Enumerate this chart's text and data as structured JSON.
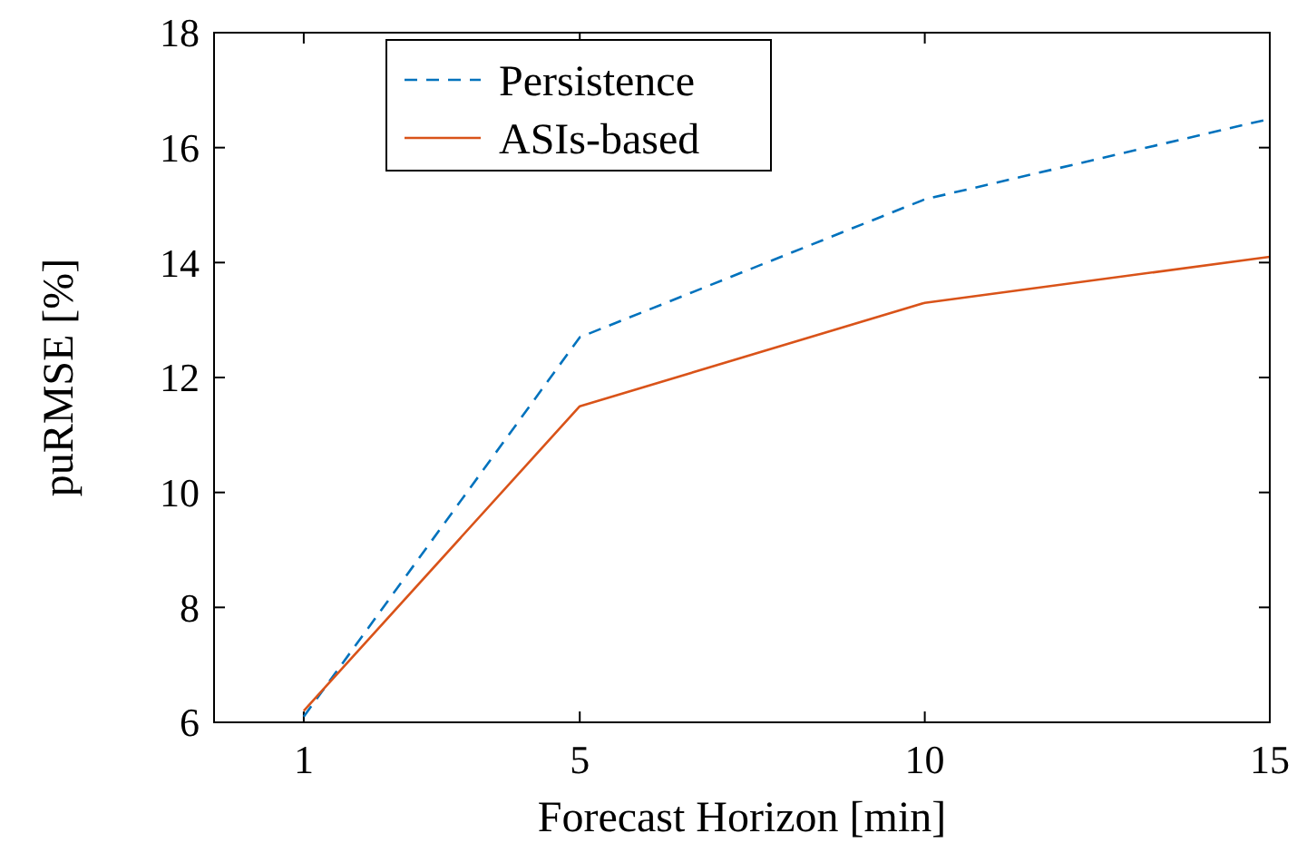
{
  "chart_data": {
    "type": "line",
    "xlabel": "Forecast Horizon [min]",
    "ylabel": "puRMSE [%]",
    "x": [
      1,
      5,
      10,
      15
    ],
    "series": [
      {
        "name": "Persistence",
        "color": "#0072bd",
        "values": [
          6.1,
          12.7,
          15.1,
          16.5
        ],
        "line_style": "dashed"
      },
      {
        "name": "ASIs-based",
        "color": "#d95319",
        "values": [
          6.2,
          11.5,
          13.3,
          14.1
        ],
        "line_style": "solid"
      }
    ],
    "xlim": [
      -0.3,
      15
    ],
    "xticks": [
      1,
      5,
      10,
      15
    ],
    "ylim": [
      6,
      18
    ],
    "yticks": [
      6,
      8,
      10,
      12,
      14,
      16,
      18
    ],
    "legend": "top left",
    "grid": false,
    "marker": "none"
  }
}
